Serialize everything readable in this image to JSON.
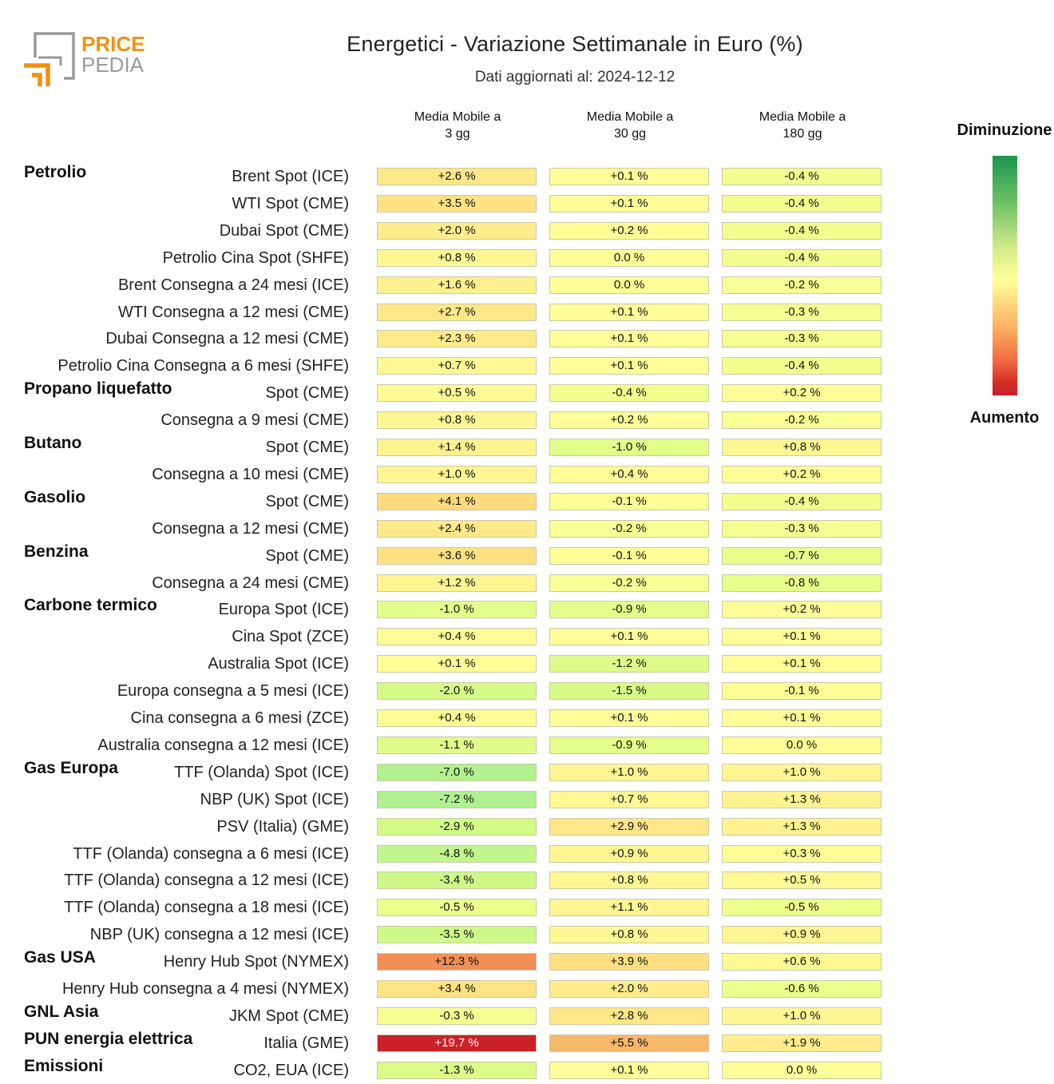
{
  "brand": {
    "line1": "PRICE",
    "line2": "PEDIA"
  },
  "title": "Energetici - Variazione Settimanale in Euro (%)",
  "subtitle": "Dati aggiornati al: 2024-12-12",
  "legend": {
    "top": "Diminuzione",
    "bottom": "Aumento"
  },
  "colors": {
    "brand_orange": "#f29111",
    "brand_grey": "#9a9a9a"
  },
  "chart_data": {
    "type": "table",
    "columns": [
      "Media Mobile a\n3 gg",
      "Media Mobile a\n30 gg",
      "Media Mobile a\n180 gg"
    ],
    "unit": "%",
    "rows": [
      {
        "group": "Petrolio",
        "label": "Brent Spot (ICE)",
        "values": [
          2.6,
          0.1,
          -0.4
        ]
      },
      {
        "group": "",
        "label": "WTI Spot (CME)",
        "values": [
          3.5,
          0.1,
          -0.4
        ]
      },
      {
        "group": "",
        "label": "Dubai Spot (CME)",
        "values": [
          2.0,
          0.2,
          -0.4
        ]
      },
      {
        "group": "",
        "label": "Petrolio Cina Spot (SHFE)",
        "values": [
          0.8,
          0.0,
          -0.4
        ]
      },
      {
        "group": "",
        "label": "Brent Consegna a 24 mesi (ICE)",
        "values": [
          1.6,
          0.0,
          -0.2
        ]
      },
      {
        "group": "",
        "label": "WTI Consegna a 12 mesi (CME)",
        "values": [
          2.7,
          0.1,
          -0.3
        ]
      },
      {
        "group": "",
        "label": "Dubai Consegna a 12 mesi (CME)",
        "values": [
          2.3,
          0.1,
          -0.3
        ]
      },
      {
        "group": "",
        "label": "Petrolio Cina Consegna a 6 mesi (SHFE)",
        "values": [
          0.7,
          0.1,
          -0.4
        ]
      },
      {
        "group": "Propano liquefatto",
        "label": "Spot (CME)",
        "values": [
          0.5,
          -0.4,
          0.2
        ]
      },
      {
        "group": "",
        "label": "Consegna a 9 mesi (CME)",
        "values": [
          0.8,
          0.2,
          -0.2
        ]
      },
      {
        "group": "Butano",
        "label": "Spot (CME)",
        "values": [
          1.4,
          -1.0,
          0.8
        ]
      },
      {
        "group": "",
        "label": "Consegna a 10 mesi (CME)",
        "values": [
          1.0,
          0.4,
          0.2
        ]
      },
      {
        "group": "Gasolio",
        "label": "Spot (CME)",
        "values": [
          4.1,
          -0.1,
          -0.4
        ]
      },
      {
        "group": "",
        "label": "Consegna a 12 mesi (CME)",
        "values": [
          2.4,
          -0.2,
          -0.3
        ]
      },
      {
        "group": "Benzina",
        "label": "Spot (CME)",
        "values": [
          3.6,
          -0.1,
          -0.7
        ]
      },
      {
        "group": "",
        "label": "Consegna a 24 mesi (CME)",
        "values": [
          1.2,
          -0.2,
          -0.8
        ]
      },
      {
        "group": "Carbone termico",
        "label": "Europa Spot (ICE)",
        "values": [
          -1.0,
          -0.9,
          0.2
        ]
      },
      {
        "group": "",
        "label": "Cina Spot (ZCE)",
        "values": [
          0.4,
          0.1,
          0.1
        ]
      },
      {
        "group": "",
        "label": "Australia Spot (ICE)",
        "values": [
          0.1,
          -1.2,
          0.1
        ]
      },
      {
        "group": "",
        "label": "Europa consegna a 5 mesi (ICE)",
        "values": [
          -2.0,
          -1.5,
          -0.1
        ]
      },
      {
        "group": "",
        "label": "Cina consegna a 6 mesi (ZCE)",
        "values": [
          0.4,
          0.1,
          0.1
        ]
      },
      {
        "group": "",
        "label": "Australia consegna a 12 mesi (ICE)",
        "values": [
          -1.1,
          -0.9,
          0.0
        ]
      },
      {
        "group": "Gas Europa",
        "label": "TTF (Olanda) Spot (ICE)",
        "values": [
          -7.0,
          1.0,
          1.0
        ]
      },
      {
        "group": "",
        "label": "NBP (UK) Spot (ICE)",
        "values": [
          -7.2,
          0.7,
          1.3
        ]
      },
      {
        "group": "",
        "label": "PSV (Italia) (GME)",
        "values": [
          -2.9,
          2.9,
          1.3
        ]
      },
      {
        "group": "",
        "label": "TTF (Olanda) consegna a 6 mesi (ICE)",
        "values": [
          -4.8,
          0.9,
          0.3
        ]
      },
      {
        "group": "",
        "label": "TTF (Olanda) consegna a 12 mesi (ICE)",
        "values": [
          -3.4,
          0.8,
          0.5
        ]
      },
      {
        "group": "",
        "label": "TTF (Olanda) consegna a 18 mesi (ICE)",
        "values": [
          -0.5,
          1.1,
          -0.5
        ]
      },
      {
        "group": "",
        "label": "NBP (UK) consegna a 12 mesi (ICE)",
        "values": [
          -3.5,
          0.8,
          0.9
        ]
      },
      {
        "group": "Gas USA",
        "label": "Henry Hub Spot (NYMEX)",
        "values": [
          12.3,
          3.9,
          0.6
        ]
      },
      {
        "group": "",
        "label": "Henry Hub consegna a 4 mesi (NYMEX)",
        "values": [
          3.4,
          2.0,
          -0.6
        ]
      },
      {
        "group": "GNL Asia",
        "label": "JKM Spot (CME)",
        "values": [
          -0.3,
          2.8,
          1.0
        ]
      },
      {
        "group": "PUN energia elettrica",
        "label": "Italia (GME)",
        "values": [
          19.7,
          5.5,
          1.9
        ]
      },
      {
        "group": "Emissioni",
        "label": "CO2, EUA (ICE)",
        "values": [
          -1.3,
          0.1,
          0.0
        ]
      }
    ]
  }
}
